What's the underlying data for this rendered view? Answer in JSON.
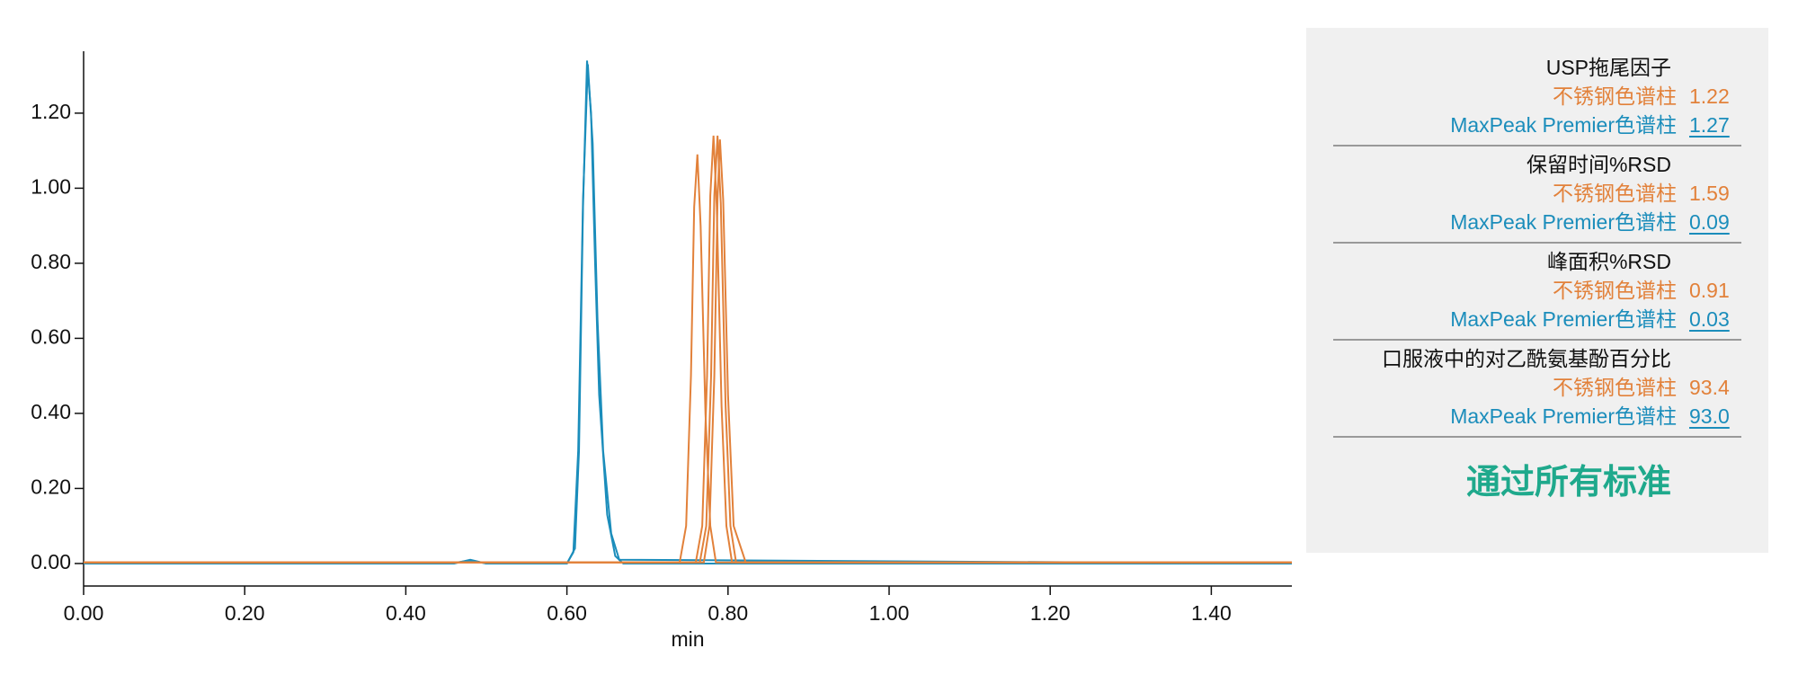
{
  "chart_data": {
    "type": "line",
    "xlabel": "min",
    "xlim": [
      0,
      1.5
    ],
    "ylim": [
      -0.06,
      1.365
    ],
    "xticks": [
      {
        "value": 0,
        "label": "0.00"
      },
      {
        "value": 0.2,
        "label": "0.20"
      },
      {
        "value": 0.4,
        "label": "0.40"
      },
      {
        "value": 0.6,
        "label": "0.60"
      },
      {
        "value": 0.8,
        "label": "0.80"
      },
      {
        "value": 1.0,
        "label": "1.00"
      },
      {
        "value": 1.2,
        "label": "1.20"
      },
      {
        "value": 1.4,
        "label": "1.40"
      }
    ],
    "yticks": [
      {
        "value": 0,
        "label": "0.00"
      },
      {
        "value": 0.2,
        "label": "0.20"
      },
      {
        "value": 0.4,
        "label": "0.40"
      },
      {
        "value": 0.6,
        "label": "0.60"
      },
      {
        "value": 0.8,
        "label": "0.80"
      },
      {
        "value": 1.0,
        "label": "1.00"
      },
      {
        "value": 1.2,
        "label": "1.20"
      }
    ],
    "series": [
      {
        "color": "#1b8dbb",
        "x": [
          0,
          0.455,
          0.47,
          0.48,
          0.49,
          0.5,
          0.6,
          0.61,
          0.615,
          0.62,
          0.625,
          0.63,
          0.635,
          0.64,
          0.65,
          0.66,
          0.67,
          1.5
        ],
        "values": [
          0,
          0,
          0.005,
          0.008,
          0.004,
          0,
          0,
          0.04,
          0.3,
          0.95,
          1.34,
          1.2,
          0.8,
          0.45,
          0.13,
          0.02,
          0,
          0
        ]
      },
      {
        "color": "#1b8dbb",
        "x": [
          0,
          0.46,
          0.48,
          0.5,
          0.6,
          0.608,
          0.614,
          0.62,
          0.626,
          0.632,
          0.638,
          0.645,
          0.655,
          0.665,
          1.5
        ],
        "values": [
          0,
          0,
          0.01,
          0,
          0,
          0.03,
          0.3,
          0.97,
          1.33,
          1.12,
          0.65,
          0.3,
          0.08,
          0.01,
          0
        ]
      },
      {
        "color": "#e2813a",
        "x": [
          0,
          0.74,
          0.748,
          0.754,
          0.758,
          0.762,
          0.766,
          0.772,
          0.778,
          0.785,
          1.5
        ],
        "values": [
          0.003,
          0.003,
          0.1,
          0.5,
          0.95,
          1.09,
          0.9,
          0.4,
          0.1,
          0.003,
          0.003
        ]
      },
      {
        "color": "#e2813a",
        "x": [
          0,
          0.76,
          0.768,
          0.774,
          0.778,
          0.782,
          0.786,
          0.792,
          0.798,
          0.805,
          1.5
        ],
        "values": [
          0.003,
          0.003,
          0.1,
          0.5,
          0.98,
          1.14,
          0.95,
          0.42,
          0.1,
          0.003,
          0.003
        ]
      },
      {
        "color": "#e2813a",
        "x": [
          0,
          0.765,
          0.773,
          0.779,
          0.783,
          0.787,
          0.791,
          0.797,
          0.803,
          0.81,
          1.5
        ],
        "values": [
          0.003,
          0.003,
          0.1,
          0.5,
          0.98,
          1.14,
          0.96,
          0.42,
          0.1,
          0.003,
          0.003
        ]
      },
      {
        "color": "#e2813a",
        "x": [
          0,
          0.77,
          0.777,
          0.783,
          0.787,
          0.79,
          0.794,
          0.8,
          0.807,
          0.822,
          1.5
        ],
        "values": [
          0.003,
          0.003,
          0.1,
          0.5,
          0.97,
          1.13,
          0.97,
          0.45,
          0.1,
          0.003,
          0.003
        ]
      }
    ]
  },
  "panel": {
    "groups": [
      {
        "title": "USP拖尾因子",
        "rows": [
          {
            "label": "不锈钢色谱柱",
            "value": "1.22"
          },
          {
            "label": "MaxPeak Premier色谱柱",
            "value": "1.27"
          }
        ]
      },
      {
        "title": "保留时间%RSD",
        "rows": [
          {
            "label": "不锈钢色谱柱",
            "value": "1.59"
          },
          {
            "label": "MaxPeak Premier色谱柱",
            "value": "0.09"
          }
        ]
      },
      {
        "title": "峰面积%RSD",
        "rows": [
          {
            "label": "不锈钢色谱柱",
            "value": "0.91"
          },
          {
            "label": "MaxPeak Premier色谱柱",
            "value": "0.03"
          }
        ]
      },
      {
        "title": "口服液中的对乙酰氨基酚百分比",
        "rows": [
          {
            "label": "不锈钢色谱柱",
            "value": "93.4"
          },
          {
            "label": "MaxPeak Premier色谱柱",
            "value": "93.0"
          }
        ]
      }
    ],
    "footer": "通过所有标准"
  }
}
